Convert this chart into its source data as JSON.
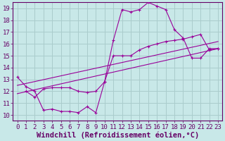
{
  "title": "",
  "xlabel": "Windchill (Refroidissement éolien,°C)",
  "ylabel": "",
  "bg_color": "#c8e8e8",
  "line_color": "#990099",
  "grid_color": "#aacccc",
  "xlim": [
    -0.5,
    23.5
  ],
  "ylim": [
    9.5,
    19.5
  ],
  "xticks": [
    0,
    1,
    2,
    3,
    4,
    5,
    6,
    7,
    8,
    9,
    10,
    11,
    12,
    13,
    14,
    15,
    16,
    17,
    18,
    19,
    20,
    21,
    22,
    23
  ],
  "yticks": [
    10,
    11,
    12,
    13,
    14,
    15,
    16,
    17,
    18,
    19
  ],
  "series1_x": [
    0,
    1,
    2,
    3,
    4,
    5,
    6,
    7,
    8,
    9,
    10,
    11,
    12,
    13,
    14,
    15,
    16,
    17,
    18,
    19,
    20,
    21,
    22,
    23
  ],
  "series1_y": [
    13.2,
    12.4,
    12.0,
    10.4,
    10.5,
    10.3,
    10.3,
    10.2,
    10.7,
    10.2,
    12.8,
    16.3,
    18.9,
    18.7,
    18.9,
    19.5,
    19.2,
    18.9,
    17.2,
    16.5,
    14.8,
    14.8,
    15.6,
    15.6
  ],
  "series2_x": [
    1,
    2,
    3,
    4,
    5,
    6,
    7,
    8,
    9,
    10,
    11,
    12,
    13,
    14,
    15,
    16,
    17,
    18,
    19,
    20,
    21,
    22,
    23
  ],
  "series2_y": [
    12.0,
    11.5,
    12.2,
    12.3,
    12.3,
    12.3,
    12.0,
    11.9,
    12.0,
    12.8,
    15.0,
    15.0,
    15.0,
    15.5,
    15.8,
    16.0,
    16.2,
    16.3,
    16.4,
    16.6,
    16.8,
    15.5,
    15.6
  ],
  "series3_x": [
    0,
    23
  ],
  "series3_y": [
    11.8,
    15.6
  ],
  "series4_x": [
    0,
    23
  ],
  "series4_y": [
    12.5,
    16.2
  ],
  "font_name": "monospace",
  "tick_fontsize": 6.5,
  "label_fontsize": 7.5
}
